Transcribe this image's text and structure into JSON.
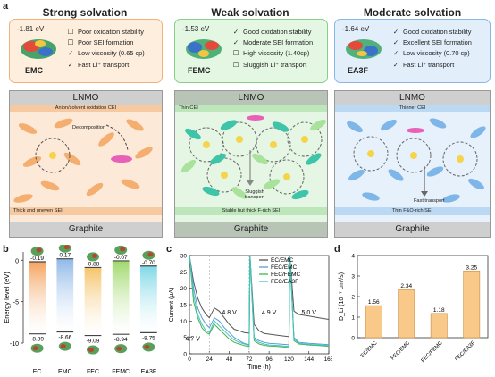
{
  "panel_a": {
    "label": "a",
    "columns": [
      {
        "title": "Strong solvation",
        "energy": "-1.81 eV",
        "molecule": "EMC",
        "props": [
          {
            "mark": "☐",
            "text": "Poor oxidation stability"
          },
          {
            "mark": "☐",
            "text": "Poor SEI formation"
          },
          {
            "mark": "✓",
            "text": "Low viscosity (0.65 cp)"
          },
          {
            "mark": "✓",
            "text": "Fast Li⁺ transport"
          }
        ],
        "top": "LNMO",
        "cei": "Anion/solvent oxidation CEI",
        "mid": "Decomposition",
        "sei": "Thick and uneven SEI",
        "bottom": "Graphite"
      },
      {
        "title": "Weak solvation",
        "energy": "-1.53 eV",
        "molecule": "FEMC",
        "props": [
          {
            "mark": "✓",
            "text": "Good oxidation stability"
          },
          {
            "mark": "✓",
            "text": "Moderate SEI formation"
          },
          {
            "mark": "☐",
            "text": "High viscosity (1.40cp)"
          },
          {
            "mark": "☐",
            "text": "Sluggish Li⁺ transport"
          }
        ],
        "top": "LNMO",
        "cei": "Thin CEI",
        "mid": "Sluggish transport",
        "sei": "Stable but thick F-rich SEI",
        "bottom": "Graphite"
      },
      {
        "title": "Moderate solvation",
        "energy": "-1.64 eV",
        "molecule": "EA3F",
        "props": [
          {
            "mark": "✓",
            "text": "Good oxidation stability"
          },
          {
            "mark": "✓",
            "text": "Excellent SEI formation"
          },
          {
            "mark": "✓",
            "text": "Low viscosity (0.70 cp)"
          },
          {
            "mark": "✓",
            "text": "Fast Li⁺ transport"
          }
        ],
        "top": "LNMO",
        "cei": "Thinner CEI",
        "mid": "Fast transport",
        "sei": "Thin F&O-rich SEI",
        "bottom": "Graphite"
      }
    ]
  },
  "chart_data": [
    {
      "panel": "b",
      "type": "bar",
      "ylabel": "Energy level (eV)",
      "ylim": [
        -10,
        1
      ],
      "yticks": [
        0,
        -5,
        -10
      ],
      "categories": [
        "EC",
        "EMC",
        "FEC",
        "FEMC",
        "EA3F"
      ],
      "lumo": [
        -0.19,
        0.17,
        -0.88,
        -0.07,
        -0.7
      ],
      "homo": [
        -8.89,
        -8.66,
        -9.09,
        -8.94,
        -8.75
      ],
      "lumo_labels": [
        "-0.19",
        "0.17",
        "-0.88",
        "-0.07",
        "-0.70"
      ],
      "homo_labels": [
        "-8.89",
        "-8.66",
        "-9.09",
        "-8.94",
        "-8.75"
      ],
      "colors": [
        "#f4a460",
        "#8fb8e8",
        "#f5c36a",
        "#9fd86a",
        "#7fd8e6"
      ]
    },
    {
      "panel": "c",
      "type": "line",
      "xlabel": "Time (h)",
      "ylabel": "Current (μA)",
      "xlim": [
        0,
        168
      ],
      "ylim": [
        0,
        30
      ],
      "xticks": [
        0,
        24,
        48,
        72,
        96,
        120,
        144,
        168
      ],
      "yticks": [
        0,
        5,
        10,
        15,
        20,
        25,
        30
      ],
      "annotations": [
        "4.7 V",
        "4.8 V",
        "4.9 V",
        "5.0 V"
      ],
      "series": [
        {
          "name": "EC/EMC",
          "color": "#555555",
          "x": [
            0,
            5,
            10,
            15,
            20,
            24,
            30,
            36,
            42,
            48,
            54,
            60,
            66,
            72,
            73,
            78,
            84,
            90,
            96,
            108,
            118,
            120,
            121,
            126,
            132,
            144,
            156,
            168
          ],
          "y": [
            30,
            22,
            17,
            14,
            12,
            11,
            14,
            13,
            11,
            9,
            7.5,
            7,
            6.5,
            6.3,
            30,
            9,
            7,
            6.2,
            6,
            5.6,
            5.3,
            5.2,
            30,
            13,
            12,
            11.5,
            11,
            10.5
          ]
        },
        {
          "name": "FEC/EMC",
          "color": "#5a9bd5",
          "x": [
            0,
            5,
            10,
            15,
            20,
            24,
            30,
            36,
            42,
            48,
            54,
            60,
            66,
            72,
            73,
            78,
            84,
            90,
            96,
            108,
            118,
            120,
            121,
            126,
            132,
            144,
            156,
            168
          ],
          "y": [
            30,
            20,
            14,
            11,
            9,
            8,
            11,
            10,
            8,
            6.5,
            5,
            4,
            3.2,
            2.8,
            30,
            5,
            4,
            3.5,
            3.2,
            3,
            2.8,
            2.7,
            30,
            5,
            3.5,
            3.2,
            3,
            2.8
          ]
        },
        {
          "name": "FEC/FEMC",
          "color": "#4caf50",
          "x": [
            0,
            5,
            10,
            15,
            20,
            24,
            30,
            36,
            42,
            48,
            54,
            60,
            66,
            72,
            73,
            78,
            84,
            90,
            96,
            108,
            118,
            120,
            121,
            126,
            132,
            144,
            156,
            168
          ],
          "y": [
            30,
            16,
            11,
            8,
            6.5,
            6,
            9,
            7.5,
            6,
            4.5,
            3.5,
            3,
            2.5,
            2.2,
            30,
            4,
            3,
            2.6,
            2.4,
            2.2,
            2,
            2,
            30,
            4,
            3,
            2.7,
            2.5,
            2.3
          ]
        },
        {
          "name": "FEC/EA3F",
          "color": "#3cc8c0",
          "x": [
            0,
            5,
            10,
            15,
            20,
            24,
            30,
            36,
            42,
            48,
            54,
            60,
            66,
            72,
            73,
            78,
            84,
            90,
            96,
            108,
            118,
            120,
            121,
            126,
            132,
            144,
            156,
            168
          ],
          "y": [
            30,
            18,
            12,
            9,
            7,
            6.5,
            10,
            8.5,
            7,
            5.5,
            4.2,
            3.5,
            3,
            2.6,
            30,
            4.5,
            3.5,
            3,
            2.7,
            2.5,
            2.3,
            2.2,
            30,
            4.5,
            3.2,
            2.9,
            2.7,
            2.5
          ]
        }
      ]
    },
    {
      "panel": "d",
      "type": "bar",
      "ylabel": "D_Li (10⁻⁷ cm²/s)",
      "ylim": [
        0,
        4
      ],
      "yticks": [
        0,
        1,
        2,
        3,
        4
      ],
      "categories": [
        "EC/EMC",
        "FEC/EMC",
        "FEC/FEMC",
        "FEC/EA3F"
      ],
      "values": [
        1.56,
        2.34,
        1.18,
        3.25
      ],
      "labels": [
        "1.56",
        "2.34",
        "1.18",
        "3.25"
      ],
      "color": "#f9c98a"
    }
  ],
  "labels": {
    "b": "b",
    "c": "c",
    "d": "d"
  },
  "colors": {
    "strong_bg": "#fdeedd",
    "strong_border": "#f2b27a",
    "weak_bg": "#e4f7e3",
    "weak_border": "#87cf86",
    "mod_bg": "#e2effb",
    "mod_border": "#86b8e6",
    "li": "#f6d44a"
  }
}
